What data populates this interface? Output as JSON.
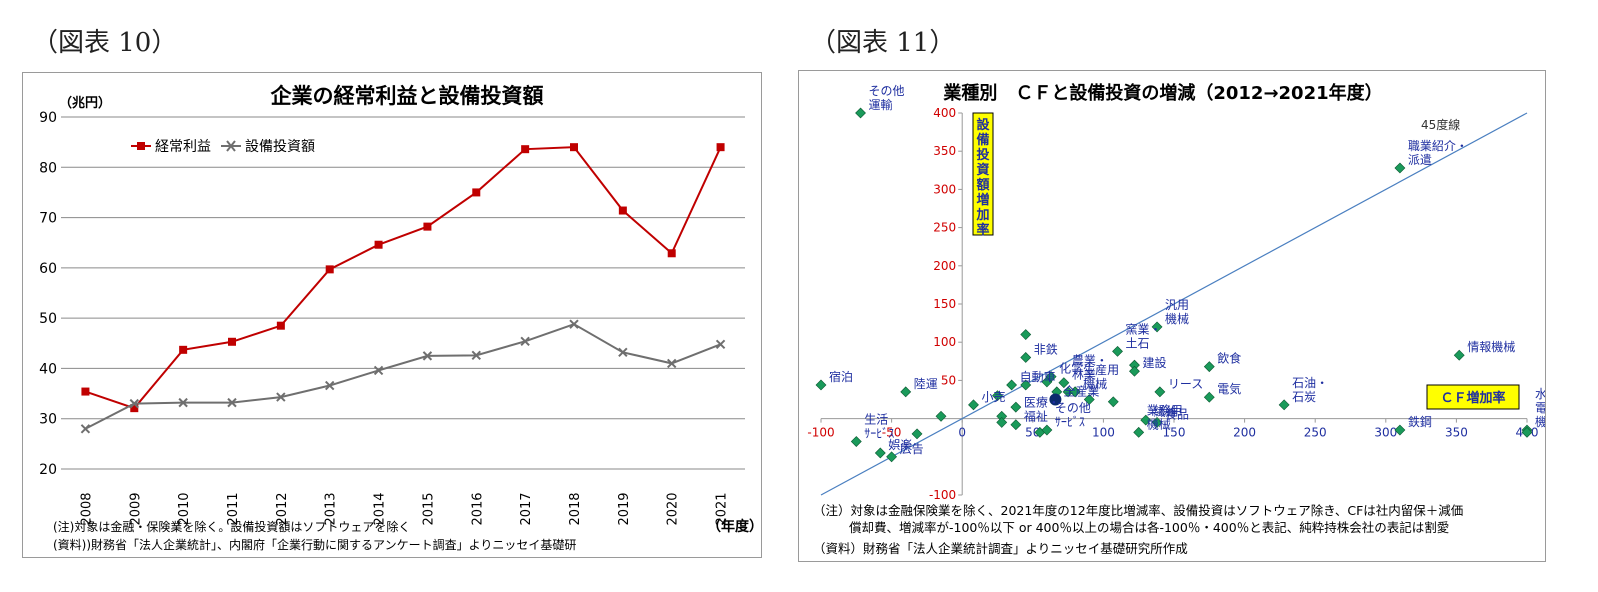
{
  "figures": [
    {
      "label": "（図表 10）"
    },
    {
      "label": "（図表 11）"
    }
  ],
  "chart_data": [
    {
      "type": "line",
      "title": "企業の経常利益と設備投資額",
      "unit_label": "（兆円）",
      "xlabel": "（年度）",
      "x": [
        "2008",
        "2009",
        "2010",
        "2011",
        "2012",
        "2013",
        "2014",
        "2015",
        "2016",
        "2017",
        "2018",
        "2019",
        "2020",
        "2021"
      ],
      "ylim": [
        20,
        90
      ],
      "yticks": [
        20,
        30,
        40,
        50,
        60,
        70,
        80,
        90
      ],
      "grid": true,
      "legend_position": "top-left",
      "series": [
        {
          "name": "経常利益",
          "color": "#c00000",
          "marker": "square",
          "values": [
            35.4,
            32.1,
            43.7,
            45.3,
            48.5,
            59.7,
            64.6,
            68.2,
            75.0,
            83.6,
            84.0,
            71.4,
            62.9,
            84.0
          ]
        },
        {
          "name": "設備投資額",
          "color": "#6f6f6f",
          "marker": "x",
          "values": [
            28.0,
            33.0,
            33.2,
            33.2,
            34.3,
            36.6,
            39.6,
            42.5,
            42.6,
            45.4,
            48.8,
            43.2,
            41.0,
            44.8
          ]
        }
      ],
      "notes": [
        "(注)対象は金融・保険業を除く。設備投資額はソフトウェアを除く",
        "(資料))財務省「法人企業統計」、内閣府「企業行動に関するアンケート調査」よりニッセイ基礎研"
      ]
    },
    {
      "type": "scatter",
      "title": "業種別　ＣＦと設備投資の増減（2012→2021年度）",
      "xlim": [
        -100,
        400
      ],
      "ylim": [
        -100,
        400
      ],
      "xticks": [
        -100,
        -50,
        0,
        50,
        100,
        150,
        200,
        250,
        300,
        350,
        400
      ],
      "yticks": [
        -100,
        50,
        100,
        150,
        200,
        250,
        300,
        350,
        400
      ],
      "x_axis_label": "ＣＦ増加率",
      "y_axis_label": "設備投資額増加率",
      "reference_line_label": "45度線",
      "marker_color": "#1a9a5a",
      "highlight_color": "#0b2a6e",
      "points": [
        {
          "x": -72,
          "y": 400,
          "label": "その他\n運輸"
        },
        {
          "x": -100,
          "y": 44,
          "label": "宿泊"
        },
        {
          "x": -40,
          "y": 35,
          "label": "陸運"
        },
        {
          "x": -15,
          "y": 3
        },
        {
          "x": 8,
          "y": 18,
          "label": "小売"
        },
        {
          "x": 25,
          "y": 30
        },
        {
          "x": 35,
          "y": 44,
          "label": "自動車"
        },
        {
          "x": 45,
          "y": 44
        },
        {
          "x": 45,
          "y": 80,
          "label": "非鉄"
        },
        {
          "x": 45,
          "y": 110
        },
        {
          "x": 60,
          "y": 48
        },
        {
          "x": 63,
          "y": 55,
          "label": "化学"
        },
        {
          "x": 67,
          "y": 35
        },
        {
          "x": 75,
          "y": 35
        },
        {
          "x": 80,
          "y": 35
        },
        {
          "x": 90,
          "y": 25
        },
        {
          "x": 107,
          "y": 22
        },
        {
          "x": 110,
          "y": 88,
          "label": "窯業・\n土石"
        },
        {
          "x": 122,
          "y": 70
        },
        {
          "x": 122,
          "y": 62,
          "label": "建設"
        },
        {
          "x": 138,
          "y": 120,
          "label": "汎用\n機械"
        },
        {
          "x": 140,
          "y": 35,
          "label": "リース"
        },
        {
          "x": 175,
          "y": 68,
          "label": "飲食"
        },
        {
          "x": 175,
          "y": 28,
          "label": "電気"
        },
        {
          "x": 228,
          "y": 18,
          "label": "石油・\n石炭"
        },
        {
          "x": 310,
          "y": 328,
          "label": "職業紹介・\n派遣"
        },
        {
          "x": 352,
          "y": 83,
          "label": "情報機械"
        },
        {
          "x": 310,
          "y": -15,
          "label": "鉄鋼"
        },
        {
          "x": 400,
          "y": -15,
          "label": "水運\n電気\n機械"
        },
        {
          "x": 400,
          "y": -18
        },
        {
          "x": -75,
          "y": -30,
          "label": "生活\nｻｰﾋﾞｽ"
        },
        {
          "x": -58,
          "y": -45,
          "label": "娯楽"
        },
        {
          "x": -50,
          "y": -50,
          "label": "広告"
        },
        {
          "x": -32,
          "y": -20
        },
        {
          "x": 28,
          "y": 3
        },
        {
          "x": 28,
          "y": -5
        },
        {
          "x": 38,
          "y": -8,
          "label": "医療・\n福祉"
        },
        {
          "x": 38,
          "y": 15
        },
        {
          "x": 55,
          "y": -18
        },
        {
          "x": 60,
          "y": -15,
          "label": "その他\nｻｰﾋﾞｽ"
        },
        {
          "x": 125,
          "y": -18,
          "label": "業務用\n機械"
        },
        {
          "x": 130,
          "y": -2,
          "label": "繊維"
        },
        {
          "x": 138,
          "y": -5,
          "label": "食品"
        },
        {
          "x": 66,
          "y": 25,
          "label": "全産業",
          "highlight": true
        },
        {
          "x": 72,
          "y": 47,
          "label": "農業・\n林業"
        },
        {
          "x": 80,
          "y": 35,
          "label": "生産用\n機械"
        }
      ],
      "notes": [
        "（注）対象は金融保険業を除く、2021年度の12年度比増減率、設備投資はソフトウェア除き、CFは社内留保＋減価",
        "償却費、増減率が-100％以下 or 400％以上の場合は各-100％・400％と表記、純粋持株会社の表記は割愛",
        "（資料）財務省「法人企業統計調査」よりニッセイ基礎研究所作成"
      ]
    }
  ]
}
